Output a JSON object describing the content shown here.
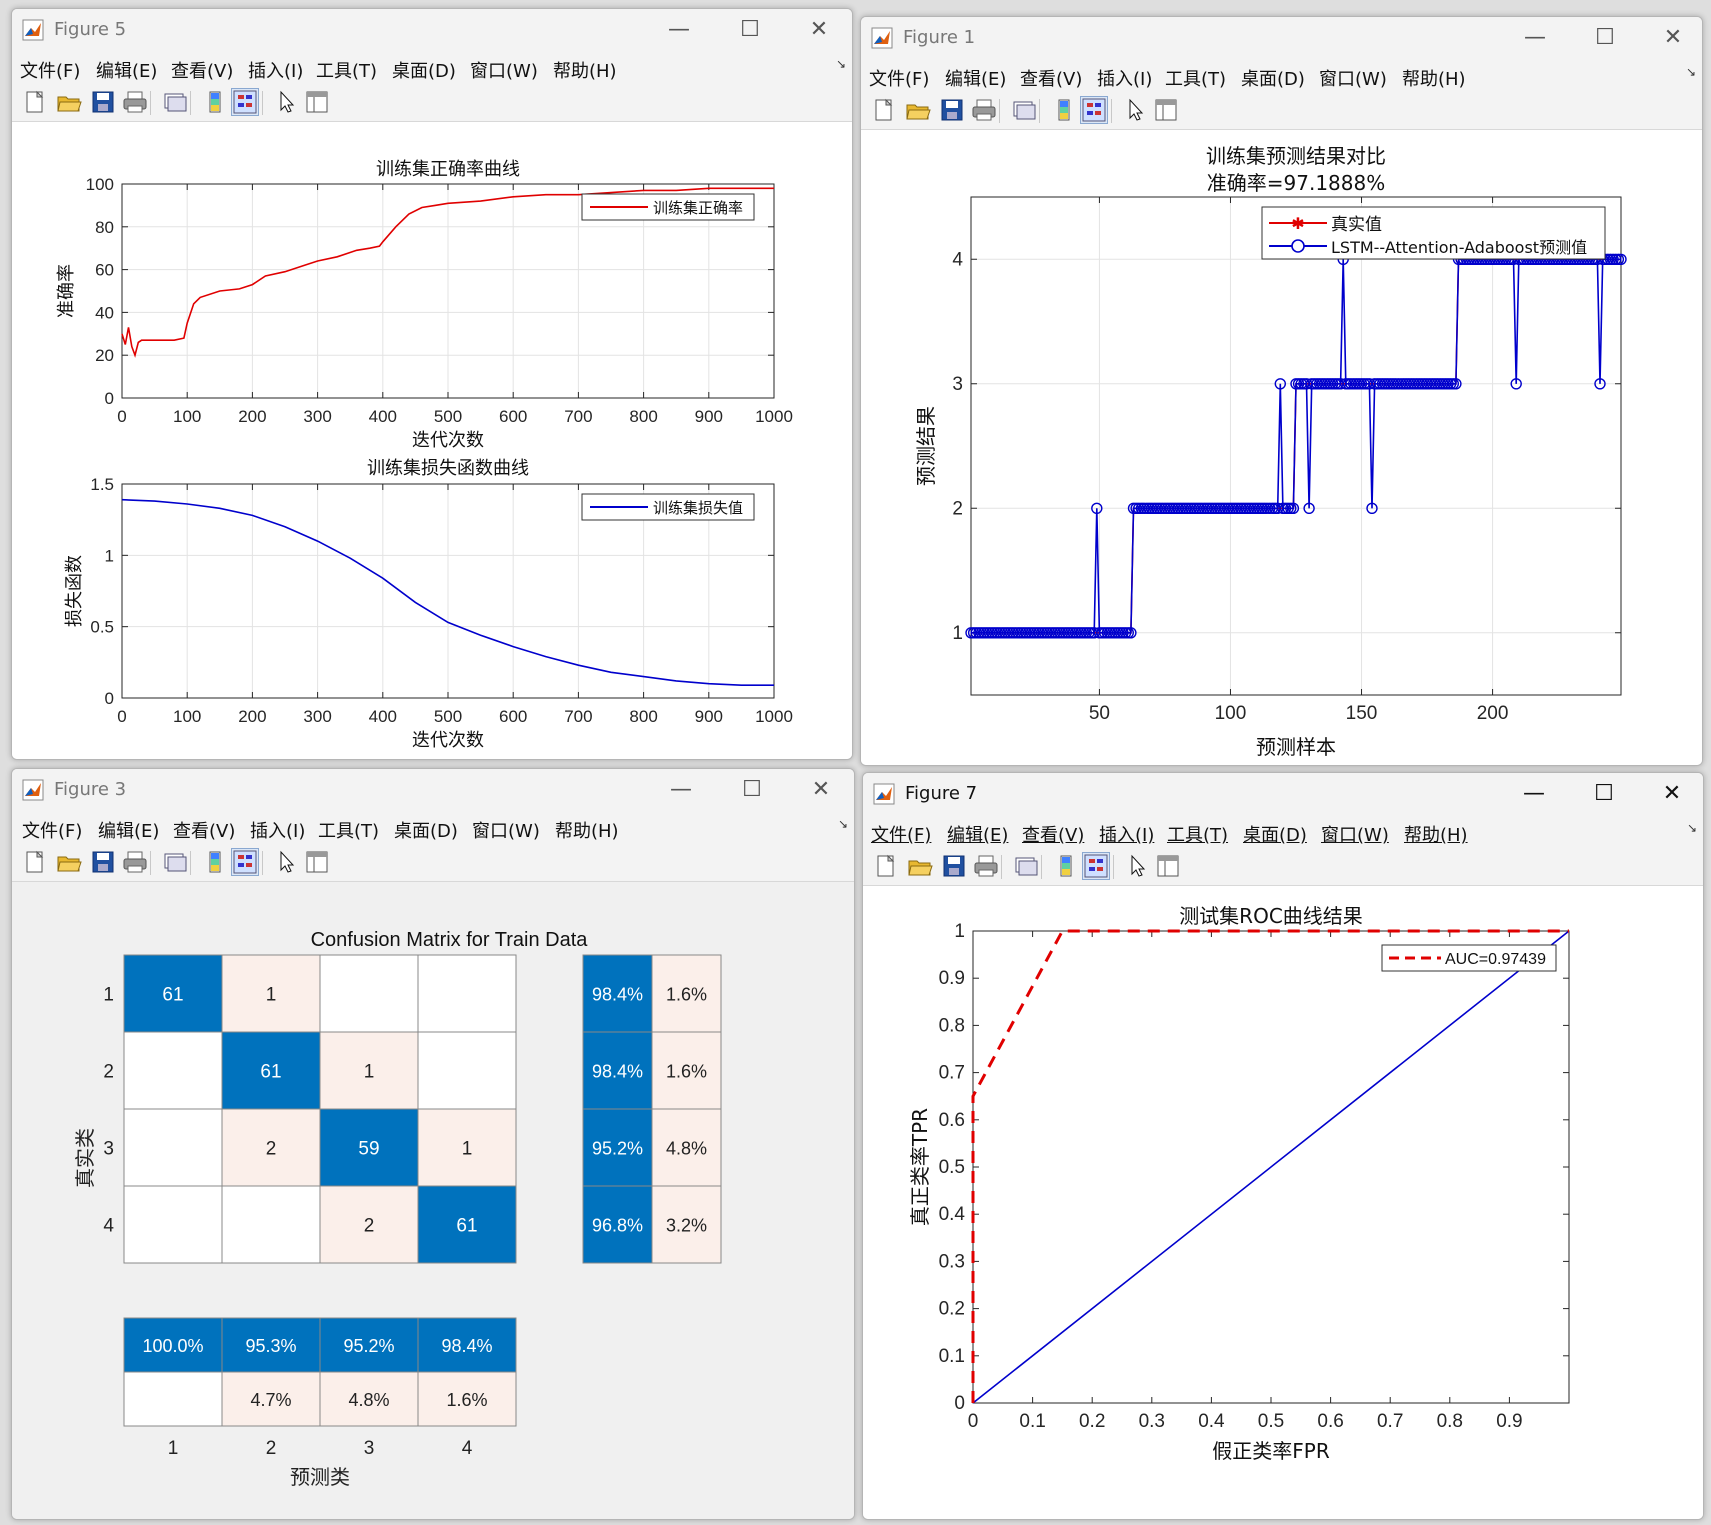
{
  "menus": [
    "文件(F)",
    "编辑(E)",
    "查看(V)",
    "插入(I)",
    "工具(T)",
    "桌面(D)",
    "窗口(W)",
    "帮助(H)"
  ],
  "window_controls": {
    "minimize": "—",
    "maximize": "☐",
    "close": "✕"
  },
  "colors": {
    "red_series": "#e00000",
    "blue_series": "#0000cc",
    "matrix_blue": "#0072bd",
    "matrix_pink": "#fbefea"
  },
  "fig5": {
    "title": "Figure 5",
    "accuracy_chart": {
      "type": "line",
      "title": "训练集正确率曲线",
      "xlabel": "迭代次数",
      "ylabel": "准确率",
      "legend": "训练集正确率",
      "xlim": [
        0,
        1000
      ],
      "ylim": [
        0,
        100
      ],
      "xticks": [
        0,
        100,
        200,
        300,
        400,
        500,
        600,
        700,
        800,
        900,
        1000
      ],
      "yticks": [
        0,
        20,
        40,
        60,
        80,
        100
      ],
      "x": [
        0,
        5,
        10,
        15,
        20,
        25,
        30,
        40,
        60,
        80,
        95,
        100,
        110,
        120,
        150,
        180,
        200,
        220,
        250,
        280,
        300,
        330,
        360,
        380,
        395,
        400,
        420,
        440,
        460,
        480,
        500,
        550,
        600,
        650,
        700,
        750,
        800,
        850,
        900,
        950,
        1000
      ],
      "y": [
        30,
        25,
        33,
        24,
        20,
        26,
        27,
        27,
        27,
        27,
        28,
        35,
        44,
        47,
        50,
        51,
        53,
        57,
        59,
        62,
        64,
        66,
        69,
        70,
        71,
        73,
        80,
        86,
        89,
        90,
        91,
        92,
        94,
        95,
        95,
        96,
        97,
        97,
        98,
        98,
        98
      ]
    },
    "loss_chart": {
      "type": "line",
      "title": "训练集损失函数曲线",
      "xlabel": "迭代次数",
      "ylabel": "损失函数",
      "legend": "训练集损失值",
      "xlim": [
        0,
        1000
      ],
      "ylim": [
        0,
        1.5
      ],
      "xticks": [
        0,
        100,
        200,
        300,
        400,
        500,
        600,
        700,
        800,
        900,
        1000
      ],
      "yticks": [
        0,
        0.5,
        1,
        1.5
      ],
      "ytick_labels": [
        "0",
        "0.5",
        "1",
        "1.5"
      ],
      "x": [
        0,
        50,
        100,
        150,
        200,
        250,
        300,
        350,
        400,
        450,
        500,
        550,
        600,
        650,
        700,
        750,
        800,
        850,
        900,
        950,
        1000
      ],
      "y": [
        1.39,
        1.38,
        1.36,
        1.33,
        1.28,
        1.2,
        1.1,
        0.98,
        0.84,
        0.67,
        0.53,
        0.44,
        0.36,
        0.29,
        0.23,
        0.18,
        0.15,
        0.12,
        0.1,
        0.09,
        0.09
      ]
    }
  },
  "fig1": {
    "title": "Figure 1",
    "chart": {
      "type": "line",
      "title": "训练集预测结果对比",
      "subtitle": "准确率=97.1888%",
      "xlabel": "预测样本",
      "ylabel": "预测结果",
      "xlim": [
        1,
        249
      ],
      "ylim": [
        0.5,
        4.5
      ],
      "xticks": [
        50,
        100,
        150,
        200
      ],
      "yticks": [
        1,
        2,
        3,
        4
      ],
      "series": [
        {
          "name": "真实值",
          "color": "#e00000",
          "marker": "*",
          "segments": [
            [
              1,
              62,
              1
            ],
            [
              63,
              124,
              2
            ],
            [
              125,
              186,
              3
            ],
            [
              187,
              249,
              4
            ]
          ]
        },
        {
          "name": "LSTM--Attention-Adaboost预测值",
          "color": "#0000cc",
          "marker": "o",
          "segments": [
            [
              1,
              62,
              1
            ],
            [
              63,
              124,
              2
            ],
            [
              125,
              186,
              3
            ],
            [
              187,
              249,
              4
            ]
          ],
          "outliers": [
            [
              49,
              2
            ],
            [
              119,
              3
            ],
            [
              130,
              2
            ],
            [
              143,
              4
            ],
            [
              154,
              2
            ],
            [
              209,
              3
            ],
            [
              241,
              3
            ]
          ]
        }
      ]
    }
  },
  "fig3": {
    "title": "Figure 3",
    "chart": {
      "type": "heatmap",
      "title": "Confusion Matrix for Train Data",
      "xlabel": "预测类",
      "ylabel": "真实类",
      "classes": [
        "1",
        "2",
        "3",
        "4"
      ],
      "matrix": [
        [
          61,
          1,
          null,
          null
        ],
        [
          null,
          61,
          1,
          null
        ],
        [
          null,
          2,
          59,
          1
        ],
        [
          null,
          null,
          2,
          61
        ]
      ],
      "row_summary": [
        [
          "98.4%",
          "1.6%"
        ],
        [
          "98.4%",
          "1.6%"
        ],
        [
          "95.2%",
          "4.8%"
        ],
        [
          "96.8%",
          "3.2%"
        ]
      ],
      "col_summary": [
        [
          "100.0%",
          ""
        ],
        [
          "95.3%",
          "4.7%"
        ],
        [
          "95.2%",
          "4.8%"
        ],
        [
          "98.4%",
          "1.6%"
        ]
      ]
    }
  },
  "fig7": {
    "title": "Figure 7",
    "chart": {
      "type": "line",
      "title": "测试集ROC曲线结果",
      "xlabel": "假正类率FPR",
      "ylabel": "真正类率TPR",
      "legend": "AUC=0.97439",
      "xlim": [
        0,
        1
      ],
      "ylim": [
        0,
        1
      ],
      "xticks": [
        0,
        0.1,
        0.2,
        0.3,
        0.4,
        0.5,
        0.6,
        0.7,
        0.8,
        0.9
      ],
      "yticks": [
        0,
        0.1,
        0.2,
        0.3,
        0.4,
        0.5,
        0.6,
        0.7,
        0.8,
        0.9,
        1
      ],
      "roc_x": [
        0,
        0,
        0.15,
        1
      ],
      "roc_y": [
        0,
        0.65,
        1,
        1
      ],
      "diag_x": [
        0,
        1
      ],
      "diag_y": [
        0,
        1
      ]
    }
  }
}
